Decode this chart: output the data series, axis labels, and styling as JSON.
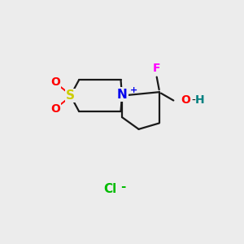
{
  "bg_color": "#ececec",
  "line_color": "#1a1a1a",
  "line_width": 1.6,
  "S_color": "#cccc00",
  "O_color": "#ff0000",
  "N_color": "#0000ee",
  "F_color": "#ff00ff",
  "OH_O_color": "#ff0000",
  "OH_H_color": "#008080",
  "Cl_color": "#00bb00",
  "font_size": 10,
  "cl_x": 4.5,
  "cl_y": 2.2,
  "xlim": [
    0,
    10
  ],
  "ylim": [
    0,
    10
  ],
  "Nx": 5.0,
  "Ny": 6.1
}
